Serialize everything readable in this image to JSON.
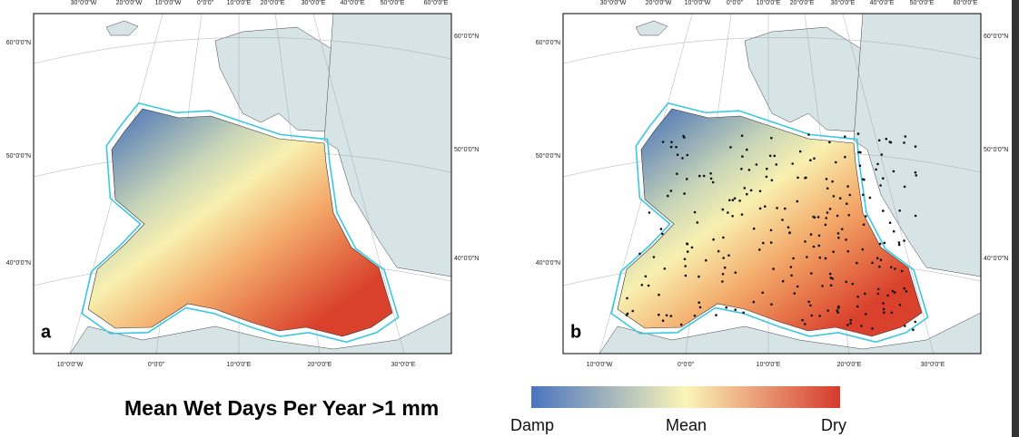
{
  "maps": [
    {
      "label": "a",
      "top_labels": [
        "30°0'0\"W",
        "20°0'0\"W",
        "10°0'0\"W",
        "0°0'0\"",
        "10°0'0\"E",
        "20°0'0\"E",
        "30°0'0\"E",
        "40°0'0\"E",
        "50°0'0\"E",
        "60°0'0\"E"
      ],
      "left_labels": [
        "60°0'0\"N",
        "50°0'0\"N",
        "40°0'0\"N"
      ],
      "right_labels": [
        "60°0'0\"N",
        "50°0'0\"N",
        "40°0'0\"N"
      ],
      "bottom_labels": [
        "10°0'0\"W",
        "0°0'0\"",
        "10°0'0\"E",
        "20°0'0\"E",
        "30°0'0\"E"
      ]
    },
    {
      "label": "b",
      "top_labels": [
        "30°0'0\"W",
        "20°0'0\"W",
        "10°0'0\"W",
        "0°0'0\"",
        "10°0'0\"E",
        "20°0'0\"E",
        "30°0'0\"E",
        "40°0'0\"E",
        "50°0'0\"E",
        "60°0'0\"E"
      ],
      "left_labels": [
        "60°0'0\"N",
        "50°0'0\"N",
        "40°0'0\"N"
      ],
      "right_labels": [
        "60°0'0\"N",
        "50°0'0\"N",
        "40°0'0\"N"
      ],
      "bottom_labels": [
        "10°0'0\"W",
        "0°0'0\"",
        "10°0'0\"E",
        "20°0'0\"E",
        "30°0'0\"E"
      ]
    }
  ],
  "title": "Mean Wet Days Per Year >1 mm",
  "legend": {
    "low": "Damp",
    "mid": "Mean",
    "high": "Dry"
  }
}
